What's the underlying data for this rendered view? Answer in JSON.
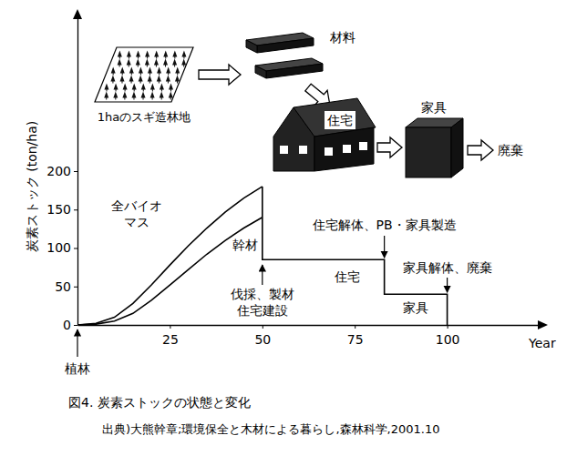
{
  "chart_data": {
    "type": "line",
    "title": "図4. 炭素ストックの状態と変化",
    "source": "出典)大熊幹章;環境保全と木材による暮らし,森林科学,2001.10",
    "x_label": "Year",
    "y_label": "炭素ストック (ton/ha)",
    "xlim": [
      0,
      125
    ],
    "xticks": [
      25,
      50,
      75,
      100
    ],
    "ylim": [
      0,
      400
    ],
    "yticks": [
      0,
      50,
      100,
      150,
      200
    ],
    "grid": false,
    "series": [
      {
        "name": "全バイオ\nマス",
        "color": "#000000",
        "x": [
          0,
          5,
          10,
          15,
          20,
          25,
          30,
          35,
          40,
          45,
          50
        ],
        "values": [
          0,
          2,
          10,
          28,
          52,
          78,
          103,
          126,
          147,
          165,
          180
        ]
      },
      {
        "name": "幹材",
        "color": "#000000",
        "x": [
          0,
          5,
          10,
          15,
          20,
          25,
          30,
          35,
          40,
          45,
          50
        ],
        "values": [
          0,
          1,
          5,
          15,
          32,
          52,
          72,
          92,
          110,
          126,
          140
        ]
      },
      {
        "color": "#000000",
        "x": [
          50,
          50,
          83,
          83,
          100,
          100
        ],
        "values": [
          180,
          85,
          85,
          40,
          40,
          0
        ]
      }
    ],
    "annotations": [
      {
        "text": "植林",
        "x": 0
      },
      {
        "text": "伐採、製材\n住宅建設",
        "x": 50
      },
      {
        "text": "住宅解体、PB・家具製造",
        "x": 83
      },
      {
        "text": "家具解体、廃棄",
        "x": 100
      },
      {
        "text": "住宅"
      },
      {
        "text": "家具"
      }
    ],
    "illustration_labels": [
      "1haのスギ造林地",
      "材料",
      "住宅",
      "家具",
      "廃棄"
    ]
  }
}
